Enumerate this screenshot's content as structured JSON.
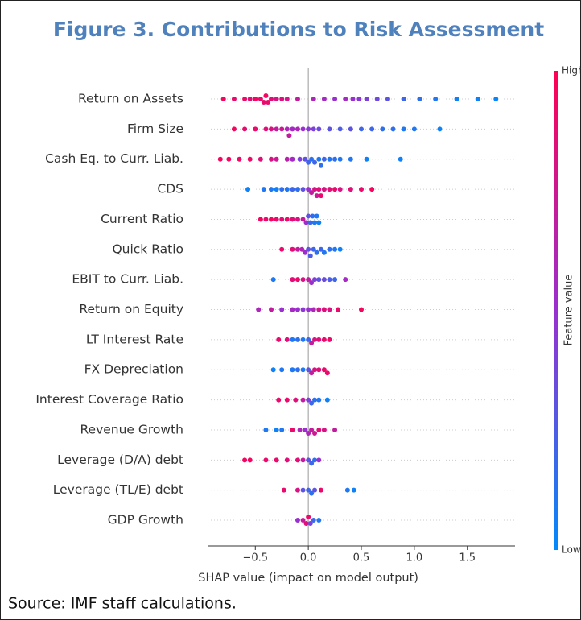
{
  "chart_data": {
    "type": "beeswarm",
    "title": "Figure 3. Contributions to Risk Assessment",
    "x_label": "SHAP value (impact on model output)",
    "xlim": [
      -0.95,
      1.95
    ],
    "xticks": [
      {
        "value": -0.5,
        "label": "−0.5"
      },
      {
        "value": 0,
        "label": "0.0"
      },
      0.5,
      {
        "value": 1,
        "label": "1.0"
      },
      1.5
    ],
    "colorbar": {
      "label": "Feature value",
      "high": "High",
      "low": "Low"
    },
    "colormap": [
      "#008afb",
      "#9a2fd0",
      "#ff0052"
    ],
    "grid": true,
    "series": [
      {
        "name": "Return on Assets",
        "values": [
          -0.8,
          -0.7,
          -0.6,
          -0.55,
          -0.5,
          -0.45,
          -0.42,
          -0.4,
          -0.38,
          -0.35,
          -0.3,
          -0.25,
          -0.2,
          -0.1,
          0.05,
          0.15,
          0.25,
          0.35,
          0.42,
          0.48,
          0.55,
          0.65,
          0.75,
          0.9,
          1.05,
          1.2,
          1.4,
          1.6,
          1.77
        ],
        "feature_values": [
          0.95,
          0.9,
          0.92,
          0.85,
          0.95,
          0.9,
          0.88,
          0.93,
          0.9,
          0.85,
          0.8,
          0.82,
          0.78,
          0.7,
          0.6,
          0.55,
          0.5,
          0.55,
          0.5,
          0.45,
          0.4,
          0.35,
          0.3,
          0.2,
          0.15,
          0.1,
          0.05,
          0.05,
          0.02
        ]
      },
      {
        "name": "Firm Size",
        "values": [
          -0.7,
          -0.6,
          -0.5,
          -0.4,
          -0.35,
          -0.3,
          -0.25,
          -0.2,
          -0.18,
          -0.15,
          -0.1,
          -0.05,
          0,
          0.05,
          0.1,
          0.2,
          0.3,
          0.4,
          0.5,
          0.6,
          0.7,
          0.8,
          0.9,
          1.0,
          1.24
        ],
        "feature_values": [
          0.95,
          0.9,
          0.9,
          0.85,
          0.8,
          0.7,
          0.75,
          0.6,
          0.7,
          0.55,
          0.6,
          0.5,
          0.45,
          0.4,
          0.35,
          0.3,
          0.25,
          0.3,
          0.2,
          0.2,
          0.15,
          0.15,
          0.1,
          0.1,
          0.05
        ]
      },
      {
        "name": "Cash Eq. to Curr. Liab.",
        "values": [
          -0.83,
          -0.75,
          -0.65,
          -0.55,
          -0.45,
          -0.35,
          -0.3,
          -0.2,
          -0.15,
          -0.08,
          -0.03,
          0,
          0.03,
          0.06,
          0.1,
          0.12,
          0.15,
          0.2,
          0.25,
          0.3,
          0.4,
          0.55,
          0.87
        ],
        "feature_values": [
          0.95,
          0.95,
          0.9,
          0.92,
          0.85,
          0.8,
          0.75,
          0.65,
          0.55,
          0.4,
          0.3,
          0.2,
          0.15,
          0.2,
          0.1,
          0.15,
          0.2,
          0.1,
          0.15,
          0.1,
          0.1,
          0.05,
          0.05
        ]
      },
      {
        "name": "CDS",
        "values": [
          -0.57,
          -0.42,
          -0.35,
          -0.3,
          -0.25,
          -0.2,
          -0.15,
          -0.1,
          -0.05,
          0,
          0.03,
          0.06,
          0.08,
          0.1,
          0.12,
          0.15,
          0.2,
          0.25,
          0.3,
          0.4,
          0.5,
          0.6
        ],
        "feature_values": [
          0.05,
          0.1,
          0.1,
          0.05,
          0.15,
          0.1,
          0.2,
          0.15,
          0.3,
          0.5,
          0.7,
          0.8,
          0.75,
          0.85,
          0.9,
          0.8,
          0.85,
          0.9,
          0.8,
          0.85,
          0.9,
          0.95
        ]
      },
      {
        "name": "Current Ratio",
        "values": [
          -0.45,
          -0.4,
          -0.35,
          -0.3,
          -0.25,
          -0.2,
          -0.15,
          -0.1,
          -0.05,
          -0.02,
          0,
          0.02,
          0.04,
          0.06,
          0.08,
          0.1
        ],
        "feature_values": [
          0.95,
          0.9,
          0.95,
          0.9,
          0.85,
          0.9,
          0.85,
          0.8,
          0.7,
          0.5,
          0.3,
          0.2,
          0.15,
          0.1,
          0.1,
          0.05
        ]
      },
      {
        "name": "Quick Ratio",
        "values": [
          -0.25,
          -0.15,
          -0.1,
          -0.06,
          -0.03,
          0,
          0.02,
          0.05,
          0.08,
          0.12,
          0.15,
          0.2,
          0.25,
          0.3
        ],
        "feature_values": [
          0.9,
          0.85,
          0.7,
          0.6,
          0.5,
          0.3,
          0.25,
          0.2,
          0.15,
          0.2,
          0.1,
          0.15,
          0.1,
          0.05
        ]
      },
      {
        "name": "EBIT to Curr. Liab.",
        "values": [
          -0.33,
          -0.15,
          -0.1,
          -0.05,
          0,
          0.03,
          0.06,
          0.1,
          0.15,
          0.2,
          0.25,
          0.35
        ],
        "feature_values": [
          0.1,
          0.85,
          0.9,
          0.8,
          0.7,
          0.5,
          0.4,
          0.3,
          0.35,
          0.25,
          0.2,
          0.55
        ]
      },
      {
        "name": "Return on Equity",
        "values": [
          -0.47,
          -0.35,
          -0.25,
          -0.15,
          -0.1,
          -0.05,
          0,
          0.05,
          0.1,
          0.15,
          0.2,
          0.28,
          0.5
        ],
        "feature_values": [
          0.6,
          0.7,
          0.5,
          0.55,
          0.5,
          0.45,
          0.5,
          0.6,
          0.75,
          0.85,
          0.8,
          0.9,
          0.95
        ]
      },
      {
        "name": "LT Interest Rate",
        "values": [
          -0.28,
          -0.2,
          -0.15,
          -0.1,
          -0.05,
          0,
          0.03,
          0.06,
          0.1,
          0.15,
          0.2
        ],
        "feature_values": [
          0.9,
          0.85,
          0.1,
          0.15,
          0.1,
          0.2,
          0.7,
          0.8,
          0.85,
          0.9,
          0.9
        ]
      },
      {
        "name": "FX Depreciation",
        "values": [
          -0.33,
          -0.25,
          -0.15,
          -0.1,
          -0.05,
          0,
          0.03,
          0.06,
          0.1,
          0.15,
          0.18
        ],
        "feature_values": [
          0.05,
          0.1,
          0.1,
          0.15,
          0.1,
          0.3,
          0.7,
          0.8,
          0.85,
          0.9,
          0.9
        ]
      },
      {
        "name": "Interest Coverage Ratio",
        "values": [
          -0.28,
          -0.2,
          -0.12,
          -0.05,
          0,
          0.03,
          0.06,
          0.1,
          0.18
        ],
        "feature_values": [
          0.9,
          0.9,
          0.85,
          0.7,
          0.4,
          0.2,
          0.15,
          0.1,
          0.05
        ]
      },
      {
        "name": "Revenue Growth",
        "values": [
          -0.4,
          -0.3,
          -0.25,
          -0.15,
          -0.08,
          -0.03,
          0,
          0.03,
          0.06,
          0.1,
          0.15,
          0.25
        ],
        "feature_values": [
          0.1,
          0.05,
          0.1,
          0.9,
          0.6,
          0.5,
          0.6,
          0.7,
          0.75,
          0.85,
          0.8,
          0.7
        ]
      },
      {
        "name": "Leverage (D/A) debt",
        "values": [
          -0.6,
          -0.55,
          -0.4,
          -0.3,
          -0.2,
          -0.1,
          -0.05,
          0,
          0.03,
          0.06,
          0.1
        ],
        "feature_values": [
          0.95,
          0.95,
          0.9,
          0.9,
          0.85,
          0.85,
          0.7,
          0.3,
          0.2,
          0.15,
          0.5
        ]
      },
      {
        "name": "Leverage (TL/E) debt",
        "values": [
          -0.23,
          -0.1,
          -0.05,
          0,
          0.03,
          0.06,
          0.12,
          0.37,
          0.43
        ],
        "feature_values": [
          0.9,
          0.8,
          0.3,
          0.2,
          0.15,
          0.3,
          0.9,
          0.1,
          0.05
        ]
      },
      {
        "name": "GDP Growth",
        "values": [
          -0.1,
          -0.05,
          -0.02,
          0,
          0.02,
          0.05,
          0.1
        ],
        "feature_values": [
          0.5,
          0.7,
          0.85,
          0.9,
          0.4,
          0.2,
          0.1
        ]
      }
    ]
  },
  "source": "Source: IMF staff calculations."
}
